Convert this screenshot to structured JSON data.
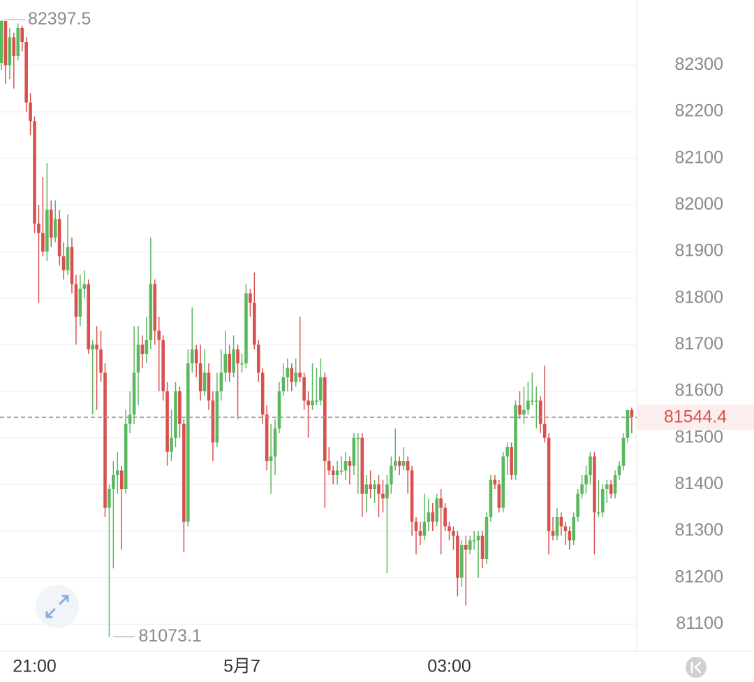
{
  "chart_data": {
    "type": "candlestick",
    "categories": [
      null,
      null,
      null,
      null,
      null,
      null,
      null,
      null,
      "21:00",
      null,
      null,
      null,
      null,
      null,
      null,
      null,
      null,
      null,
      null,
      null,
      null,
      null,
      null,
      null,
      null,
      null,
      null,
      null,
      null,
      null,
      null,
      null,
      null,
      null,
      null,
      null,
      null,
      null,
      null,
      null,
      null,
      null,
      null,
      null,
      null,
      null,
      null,
      null,
      null,
      null,
      null,
      null,
      null,
      null,
      null,
      null,
      null,
      null,
      "5月7",
      null,
      null,
      null,
      null,
      null,
      null,
      null,
      null,
      null,
      null,
      null,
      null,
      null,
      null,
      null,
      null,
      null,
      null,
      null,
      null,
      null,
      null,
      null,
      null,
      null,
      null,
      null,
      null,
      null,
      null,
      null,
      null,
      null,
      null,
      null,
      null,
      null,
      null,
      null,
      null,
      null,
      null,
      null,
      null,
      null,
      null,
      null,
      null,
      null,
      "03:00",
      null,
      null,
      null,
      null,
      null,
      null,
      null,
      null,
      null,
      null,
      null,
      null,
      null,
      null,
      null,
      null,
      null,
      null,
      null,
      null,
      null,
      null,
      null,
      null,
      null,
      null,
      null,
      null,
      null,
      null,
      null,
      null,
      null,
      null,
      null,
      null,
      null,
      null,
      null,
      null,
      null,
      null,
      null,
      null
    ],
    "candles": [
      [
        82305,
        82397.5,
        82290,
        82395
      ],
      [
        82395,
        82395,
        82260,
        82300
      ],
      [
        82300,
        82380,
        82270,
        82360
      ],
      [
        82360,
        82370,
        82250,
        82320
      ],
      [
        82320,
        82390,
        82310,
        82380
      ],
      [
        82380,
        82385,
        82330,
        82350
      ],
      [
        82350,
        82360,
        82200,
        82220
      ],
      [
        82220,
        82240,
        82150,
        82180
      ],
      [
        82180,
        82190,
        81940,
        81960
      ],
      [
        81960,
        82000,
        81790,
        81940
      ],
      [
        81940,
        82060,
        81890,
        81900
      ],
      [
        81900,
        82090,
        81880,
        81990
      ],
      [
        81990,
        82010,
        81910,
        81930
      ],
      [
        81930,
        82010,
        81920,
        81970
      ],
      [
        81970,
        81990,
        81870,
        81890
      ],
      [
        81890,
        81920,
        81840,
        81860
      ],
      [
        81860,
        81980,
        81850,
        81910
      ],
      [
        81910,
        81930,
        81810,
        81830
      ],
      [
        81830,
        81850,
        81700,
        81760
      ],
      [
        81760,
        81850,
        81740,
        81820
      ],
      [
        81820,
        81860,
        81800,
        81830
      ],
      [
        81830,
        81840,
        81680,
        81690
      ],
      [
        81690,
        81710,
        81550,
        81700
      ],
      [
        81700,
        81740,
        81560,
        81690
      ],
      [
        81690,
        81730,
        81620,
        81640
      ],
      [
        81640,
        81660,
        81330,
        81350
      ],
      [
        81350,
        81400,
        81073.1,
        81390
      ],
      [
        81390,
        81450,
        81220,
        81420
      ],
      [
        81420,
        81470,
        81380,
        81430
      ],
      [
        81430,
        81440,
        81260,
        81390
      ],
      [
        81390,
        81560,
        81380,
        81530
      ],
      [
        81530,
        81600,
        81510,
        81550
      ],
      [
        81550,
        81740,
        81530,
        81640
      ],
      [
        81640,
        81740,
        81570,
        81700
      ],
      [
        81700,
        81720,
        81650,
        81680
      ],
      [
        81680,
        81760,
        81660,
        81710
      ],
      [
        81710,
        81930,
        81690,
        81830
      ],
      [
        81830,
        81840,
        81700,
        81730
      ],
      [
        81730,
        81760,
        81600,
        81710
      ],
      [
        81710,
        81720,
        81580,
        81600
      ],
      [
        81600,
        81620,
        81440,
        81470
      ],
      [
        81470,
        81560,
        81450,
        81500
      ],
      [
        81500,
        81620,
        81480,
        81600
      ],
      [
        81600,
        81610,
        81500,
        81530
      ],
      [
        81530,
        81540,
        81255,
        81320
      ],
      [
        81320,
        81690,
        81310,
        81660
      ],
      [
        81660,
        81780,
        81640,
        81690
      ],
      [
        81690,
        81700,
        81630,
        81660
      ],
      [
        81660,
        81700,
        81580,
        81600
      ],
      [
        81600,
        81690,
        81590,
        81640
      ],
      [
        81640,
        81660,
        81560,
        81580
      ],
      [
        81580,
        81600,
        81450,
        81490
      ],
      [
        81490,
        81640,
        81480,
        81600
      ],
      [
        81600,
        81690,
        81580,
        81640
      ],
      [
        81640,
        81730,
        81620,
        81680
      ],
      [
        81680,
        81700,
        81620,
        81640
      ],
      [
        81640,
        81720,
        81630,
        81690
      ],
      [
        81690,
        81700,
        81540,
        81660
      ],
      [
        81660,
        81680,
        81640,
        81660
      ],
      [
        81660,
        81830,
        81650,
        81810
      ],
      [
        81810,
        81820,
        81760,
        81790
      ],
      [
        81790,
        81855,
        81690,
        81700
      ],
      [
        81700,
        81710,
        81620,
        81640
      ],
      [
        81640,
        81650,
        81530,
        81550
      ],
      [
        81550,
        81570,
        81430,
        81450
      ],
      [
        81450,
        81530,
        81380,
        81460
      ],
      [
        81460,
        81540,
        81420,
        81520
      ],
      [
        81520,
        81620,
        81510,
        81600
      ],
      [
        81600,
        81660,
        81590,
        81630
      ],
      [
        81630,
        81670,
        81600,
        81650
      ],
      [
        81650,
        81660,
        81600,
        81620
      ],
      [
        81620,
        81670,
        81610,
        81640
      ],
      [
        81640,
        81760,
        81620,
        81630
      ],
      [
        81630,
        81640,
        81560,
        81580
      ],
      [
        81580,
        81600,
        81500,
        81570
      ],
      [
        81570,
        81660,
        81560,
        81580
      ],
      [
        81580,
        81650,
        81570,
        81580
      ],
      [
        81580,
        81670,
        81570,
        81630
      ],
      [
        81630,
        81640,
        81350,
        81450
      ],
      [
        81450,
        81480,
        81420,
        81430
      ],
      [
        81430,
        81440,
        81400,
        81420
      ],
      [
        81420,
        81450,
        81400,
        81430
      ],
      [
        81430,
        81460,
        81420,
        81430
      ],
      [
        81430,
        81470,
        81410,
        81450
      ],
      [
        81450,
        81460,
        81400,
        81440
      ],
      [
        81440,
        81510,
        81420,
        81500
      ],
      [
        81500,
        81510,
        81380,
        81500
      ],
      [
        81500,
        81510,
        81330,
        81380
      ],
      [
        81380,
        81420,
        81340,
        81400
      ],
      [
        81400,
        81430,
        81370,
        81390
      ],
      [
        81390,
        81410,
        81360,
        81400
      ],
      [
        81400,
        81420,
        81330,
        81380
      ],
      [
        81380,
        81410,
        81340,
        81370
      ],
      [
        81370,
        81420,
        81210,
        81400
      ],
      [
        81400,
        81460,
        81380,
        81440
      ],
      [
        81440,
        81520,
        81430,
        81450
      ],
      [
        81450,
        81460,
        81420,
        81440
      ],
      [
        81440,
        81480,
        81430,
        81450
      ],
      [
        81450,
        81460,
        81380,
        81430
      ],
      [
        81430,
        81440,
        81290,
        81320
      ],
      [
        81320,
        81330,
        81250,
        81300
      ],
      [
        81300,
        81320,
        81270,
        81290
      ],
      [
        81290,
        81380,
        81280,
        81320
      ],
      [
        81320,
        81370,
        81300,
        81340
      ],
      [
        81340,
        81360,
        81300,
        81320
      ],
      [
        81320,
        81380,
        81310,
        81370
      ],
      [
        81370,
        81390,
        81250,
        81350
      ],
      [
        81350,
        81360,
        81300,
        81310
      ],
      [
        81310,
        81320,
        81280,
        81300
      ],
      [
        81300,
        81310,
        81260,
        81290
      ],
      [
        81290,
        81300,
        81160,
        81200
      ],
      [
        81200,
        81280,
        81180,
        81270
      ],
      [
        81270,
        81290,
        81140,
        81260
      ],
      [
        81260,
        81290,
        81250,
        81280
      ],
      [
        81280,
        81300,
        81260,
        81280
      ],
      [
        81280,
        81300,
        81200,
        81290
      ],
      [
        81290,
        81300,
        81220,
        81240
      ],
      [
        81240,
        81340,
        81230,
        81330
      ],
      [
        81330,
        81420,
        81320,
        81410
      ],
      [
        81410,
        81420,
        81390,
        81400
      ],
      [
        81400,
        81410,
        81340,
        81350
      ],
      [
        81350,
        81470,
        81340,
        81460
      ],
      [
        81460,
        81490,
        81420,
        81480
      ],
      [
        81480,
        81490,
        81410,
        81420
      ],
      [
        81420,
        81580,
        81410,
        81570
      ],
      [
        81570,
        81600,
        81540,
        81550
      ],
      [
        81550,
        81610,
        81530,
        81560
      ],
      [
        81560,
        81620,
        81550,
        81580
      ],
      [
        81580,
        81640,
        81570,
        81580
      ],
      [
        81580,
        81610,
        81520,
        81580
      ],
      [
        81580,
        81590,
        81510,
        81530
      ],
      [
        81530,
        81655,
        81490,
        81500
      ],
      [
        81500,
        81510,
        81250,
        81300
      ],
      [
        81300,
        81330,
        81280,
        81290
      ],
      [
        81290,
        81350,
        81280,
        81330
      ],
      [
        81330,
        81340,
        81290,
        81310
      ],
      [
        81310,
        81320,
        81270,
        81300
      ],
      [
        81300,
        81310,
        81260,
        81280
      ],
      [
        81280,
        81340,
        81270,
        81330
      ],
      [
        81330,
        81390,
        81320,
        81380
      ],
      [
        81380,
        81420,
        81370,
        81400
      ],
      [
        81400,
        81440,
        81380,
        81420
      ],
      [
        81420,
        81470,
        81400,
        81460
      ],
      [
        81460,
        81470,
        81250,
        81340
      ],
      [
        81340,
        81410,
        81330,
        81340
      ],
      [
        81340,
        81400,
        81330,
        81390
      ],
      [
        81390,
        81410,
        81360,
        81400
      ],
      [
        81400,
        81410,
        81370,
        81380
      ],
      [
        81380,
        81430,
        81370,
        81420
      ],
      [
        81420,
        81450,
        81410,
        81440
      ],
      [
        81440,
        81510,
        81430,
        81500
      ],
      [
        81500,
        81560,
        81490,
        81560
      ],
      [
        81560,
        81565,
        81510,
        81544.4
      ]
    ],
    "up_color": "#5cb85f",
    "down_color": "#d9514f",
    "ylim": [
      81045,
      82440
    ],
    "yticks": [
      81100,
      81200,
      81300,
      81400,
      81500,
      81600,
      81700,
      81800,
      81900,
      82000,
      82100,
      82200,
      82300
    ],
    "grid": true
  }
}
